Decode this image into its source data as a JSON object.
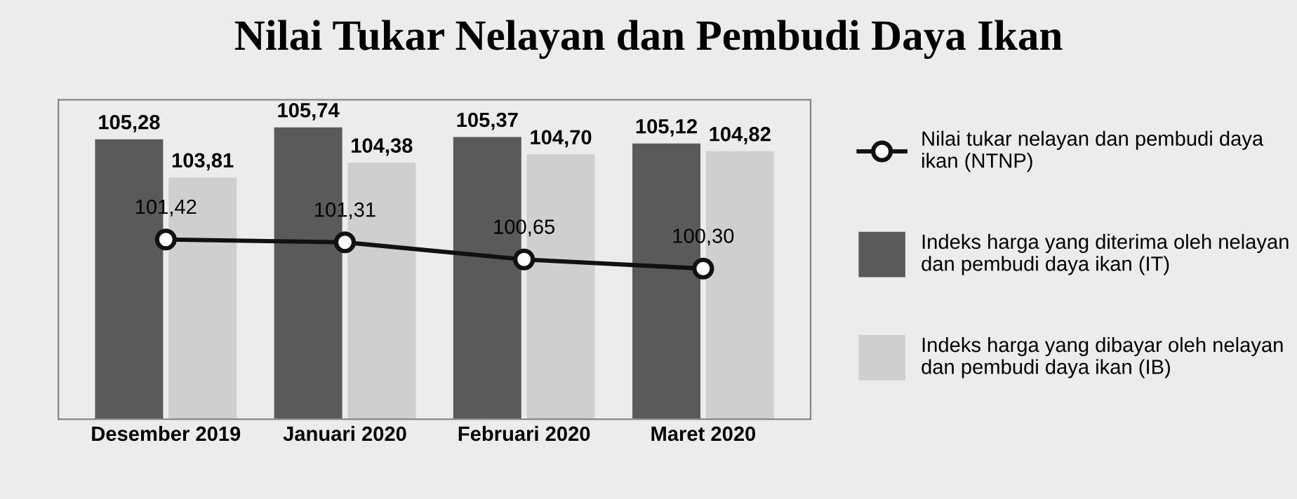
{
  "chart_data": {
    "type": "bar",
    "title": "Nilai Tukar Nelayan dan Pembudi Daya Ikan",
    "categories": [
      "Desember 2019",
      "Januari 2020",
      "Februari 2020",
      "Maret 2020"
    ],
    "series": [
      {
        "name": "Nilai tukar nelayan dan pembudi daya ikan (NTNP)",
        "type": "line",
        "color": "#111111",
        "values": [
          101.42,
          101.31,
          100.65,
          100.3
        ],
        "value_labels": [
          "101,42",
          "101,31",
          "100,65",
          "100,30"
        ]
      },
      {
        "name": "Indeks harga yang diterima oleh nelayan dan pembudi daya ikan (IT)",
        "color": "#5a5a5a",
        "values": [
          105.28,
          105.74,
          105.37,
          105.12
        ],
        "value_labels": [
          "105,28",
          "105,74",
          "105,37",
          "105,12"
        ]
      },
      {
        "name": "Indeks harga yang dibayar oleh nelayan dan pembudi daya ikan (IB)",
        "color": "#cfcfcf",
        "values": [
          103.81,
          104.38,
          104.7,
          104.82
        ],
        "value_labels": [
          "103,81",
          "104,38",
          "104,70",
          "104,82"
        ]
      }
    ],
    "ylim": [
      94.5,
      106.8
    ],
    "tick_labels": "x",
    "legend": "right",
    "marker": "circle",
    "line_style": "solid"
  }
}
